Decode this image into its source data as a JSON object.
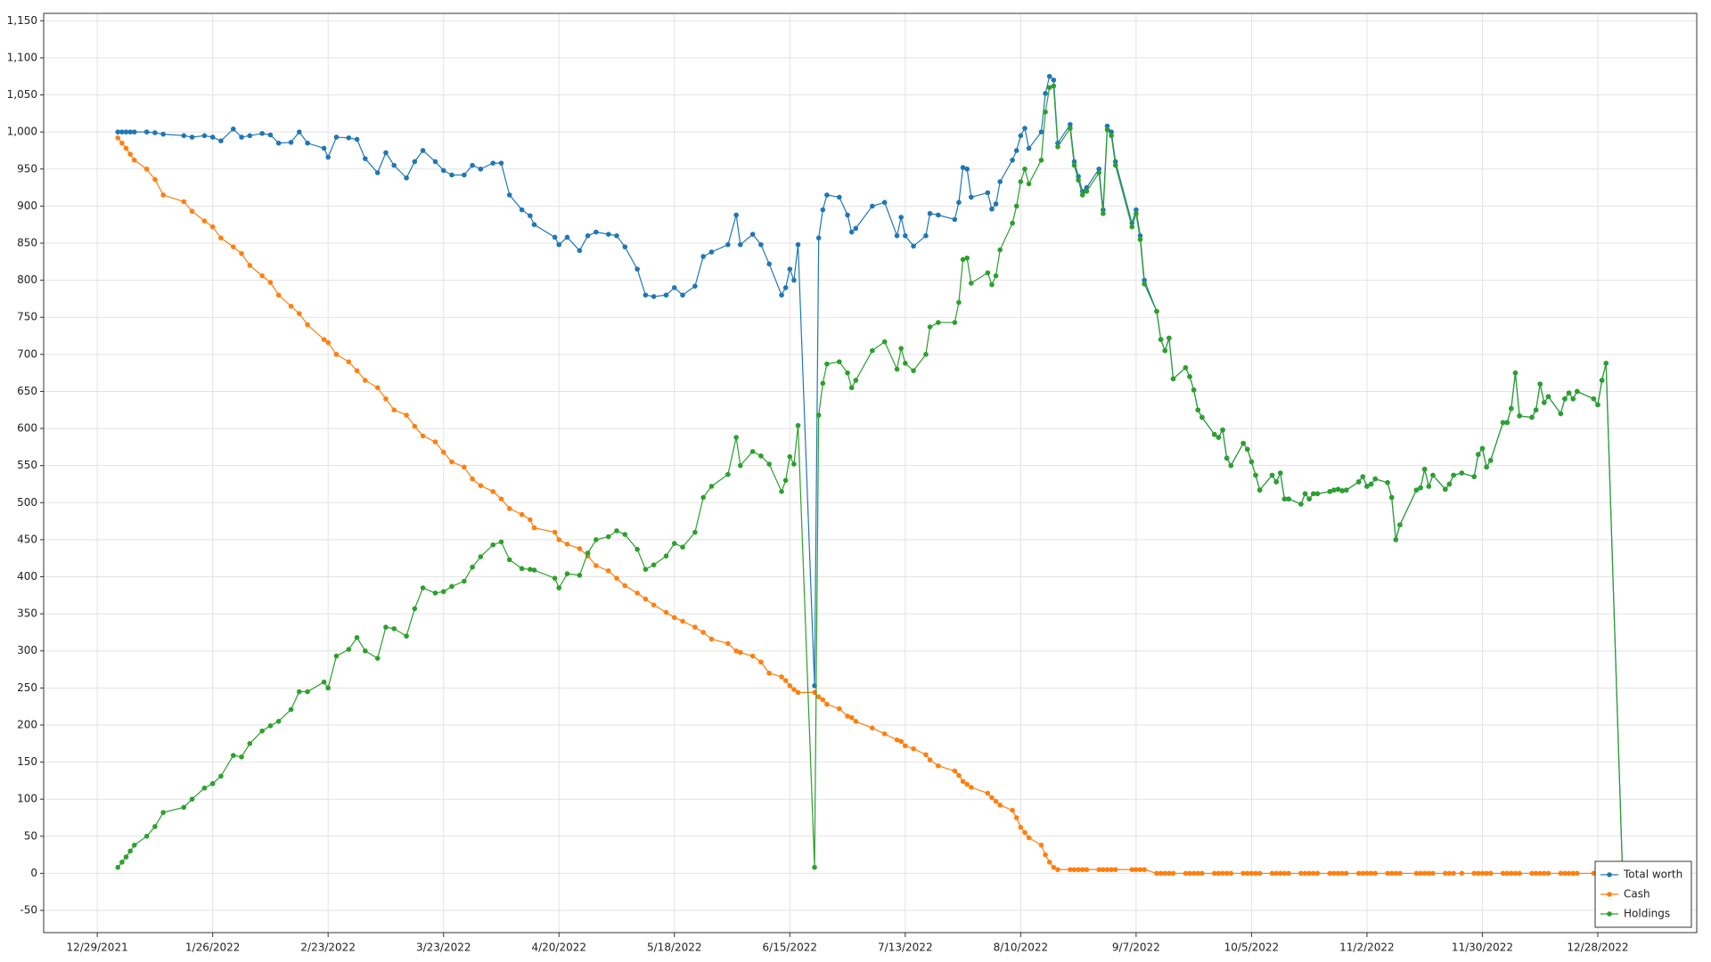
{
  "chart_data": {
    "type": "line",
    "x": [
      "1/3/2022",
      "1/4/2022",
      "1/5/2022",
      "1/6/2022",
      "1/7/2022",
      "1/10/2022",
      "1/12/2022",
      "1/14/2022",
      "1/19/2022",
      "1/21/2022",
      "1/24/2022",
      "1/26/2022",
      "1/28/2022",
      "1/31/2022",
      "2/2/2022",
      "2/4/2022",
      "2/7/2022",
      "2/9/2022",
      "2/11/2022",
      "2/14/2022",
      "2/16/2022",
      "2/18/2022",
      "2/22/2022",
      "2/23/2022",
      "2/25/2022",
      "2/28/2022",
      "3/2/2022",
      "3/4/2022",
      "3/7/2022",
      "3/9/2022",
      "3/11/2022",
      "3/14/2022",
      "3/16/2022",
      "3/18/2022",
      "3/21/2022",
      "3/23/2022",
      "3/25/2022",
      "3/28/2022",
      "3/30/2022",
      "4/1/2022",
      "4/4/2022",
      "4/6/2022",
      "4/8/2022",
      "4/11/2022",
      "4/13/2022",
      "4/14/2022",
      "4/19/2022",
      "4/20/2022",
      "4/22/2022",
      "4/25/2022",
      "4/27/2022",
      "4/29/2022",
      "5/2/2022",
      "5/4/2022",
      "5/6/2022",
      "5/9/2022",
      "5/11/2022",
      "5/13/2022",
      "5/16/2022",
      "5/18/2022",
      "5/20/2022",
      "5/23/2022",
      "5/25/2022",
      "5/27/2022",
      "5/31/2022",
      "6/2/2022",
      "6/3/2022",
      "6/6/2022",
      "6/8/2022",
      "6/10/2022",
      "6/13/2022",
      "6/14/2022",
      "6/15/2022",
      "6/16/2022",
      "6/17/2022",
      "6/21/2022",
      "6/22/2022",
      "6/23/2022",
      "6/24/2022",
      "6/27/2022",
      "6/29/2022",
      "6/30/2022",
      "7/1/2022",
      "7/5/2022",
      "7/8/2022",
      "7/11/2022",
      "7/12/2022",
      "7/13/2022",
      "7/15/2022",
      "7/18/2022",
      "7/19/2022",
      "7/21/2022",
      "7/25/2022",
      "7/26/2022",
      "7/27/2022",
      "7/28/2022",
      "7/29/2022",
      "8/2/2022",
      "8/3/2022",
      "8/4/2022",
      "8/5/2022",
      "8/8/2022",
      "8/9/2022",
      "8/10/2022",
      "8/11/2022",
      "8/12/2022",
      "8/15/2022",
      "8/16/2022",
      "8/17/2022",
      "8/18/2022",
      "8/19/2022",
      "8/22/2022",
      "8/23/2022",
      "8/24/2022",
      "8/25/2022",
      "8/26/2022",
      "8/29/2022",
      "8/30/2022",
      "8/31/2022",
      "9/1/2022",
      "9/2/2022",
      "9/6/2022",
      "9/7/2022",
      "9/8/2022",
      "9/9/2022",
      "9/12/2022",
      "9/13/2022",
      "9/14/2022",
      "9/15/2022",
      "9/16/2022",
      "9/19/2022",
      "9/20/2022",
      "9/21/2022",
      "9/22/2022",
      "9/23/2022",
      "9/26/2022",
      "9/27/2022",
      "9/28/2022",
      "9/29/2022",
      "9/30/2022",
      "10/3/2022",
      "10/4/2022",
      "10/5/2022",
      "10/6/2022",
      "10/7/2022",
      "10/10/2022",
      "10/11/2022",
      "10/12/2022",
      "10/13/2022",
      "10/14/2022",
      "10/17/2022",
      "10/18/2022",
      "10/19/2022",
      "10/20/2022",
      "10/21/2022",
      "10/24/2022",
      "10/25/2022",
      "10/26/2022",
      "10/27/2022",
      "10/28/2022",
      "10/31/2022",
      "11/1/2022",
      "11/2/2022",
      "11/3/2022",
      "11/4/2022",
      "11/7/2022",
      "11/8/2022",
      "11/9/2022",
      "11/10/2022",
      "11/14/2022",
      "11/15/2022",
      "11/16/2022",
      "11/17/2022",
      "11/18/2022",
      "11/21/2022",
      "11/22/2022",
      "11/23/2022",
      "11/25/2022",
      "11/28/2022",
      "11/29/2022",
      "11/30/2022",
      "12/1/2022",
      "12/2/2022",
      "12/5/2022",
      "12/6/2022",
      "12/7/2022",
      "12/8/2022",
      "12/9/2022",
      "12/12/2022",
      "12/13/2022",
      "12/14/2022",
      "12/15/2022",
      "12/16/2022",
      "12/19/2022",
      "12/20/2022",
      "12/21/2022",
      "12/22/2022",
      "12/23/2022",
      "12/27/2022",
      "12/28/2022",
      "12/29/2022",
      "12/30/2022",
      "1/3/2023"
    ],
    "series": [
      {
        "name": "Total worth",
        "color": "#1f77b4",
        "values": [
          1000,
          1000,
          1000,
          1000,
          1000,
          1000,
          999,
          997,
          995,
          993,
          995,
          993,
          988,
          1004,
          993,
          995,
          998,
          996,
          985,
          986,
          1000,
          985,
          978,
          966,
          993,
          992,
          990,
          964,
          945,
          972,
          955,
          938,
          960,
          975,
          960,
          948,
          942,
          942,
          955,
          950,
          958,
          958,
          915,
          895,
          887,
          875,
          858,
          848,
          858,
          840,
          860,
          865,
          862,
          860,
          845,
          815,
          780,
          778,
          780,
          790,
          780,
          792,
          832,
          838,
          848,
          888,
          848,
          862,
          848,
          822,
          780,
          790,
          815,
          800,
          848,
          253,
          857,
          895,
          915,
          912,
          888,
          865,
          870,
          900,
          905,
          860,
          885,
          860,
          846,
          860,
          890,
          888,
          882,
          905,
          952,
          950,
          912,
          918,
          896,
          903,
          933,
          962,
          975,
          995,
          1005,
          978,
          1000,
          1052,
          1075,
          1070,
          985,
          1010,
          960,
          940,
          920,
          925,
          950,
          895,
          1008,
          1000,
          960,
          877,
          895,
          860,
          800,
          758,
          720,
          705,
          722,
          667,
          682,
          670,
          652,
          625,
          615,
          592,
          588,
          598,
          560,
          550,
          580,
          572,
          555,
          537,
          517,
          537,
          528,
          540,
          505,
          505,
          498,
          512,
          505,
          512,
          512,
          515,
          517,
          518,
          516,
          517,
          528,
          535,
          522,
          525,
          532,
          527,
          507,
          450,
          470,
          517,
          520,
          545,
          522,
          537,
          518,
          525,
          537,
          540,
          535,
          565,
          573,
          548,
          557,
          608,
          608,
          627,
          675,
          617,
          615,
          625,
          660,
          635,
          643,
          620,
          640,
          648,
          640,
          650,
          640,
          632,
          665,
          688,
          0
        ]
      },
      {
        "name": "Cash",
        "color": "#ff7f0e",
        "values": [
          992,
          985,
          978,
          970,
          962,
          950,
          936,
          915,
          906,
          893,
          880,
          872,
          857,
          845,
          836,
          820,
          806,
          797,
          780,
          765,
          755,
          740,
          720,
          716,
          700,
          690,
          678,
          665,
          655,
          640,
          625,
          618,
          603,
          590,
          582,
          568,
          555,
          548,
          532,
          523,
          515,
          505,
          492,
          484,
          477,
          466,
          460,
          450,
          444,
          438,
          428,
          415,
          408,
          398,
          388,
          378,
          370,
          362,
          352,
          345,
          340,
          332,
          325,
          316,
          310,
          300,
          298,
          293,
          285,
          270,
          265,
          260,
          253,
          248,
          244,
          244,
          238,
          234,
          228,
          222,
          212,
          210,
          205,
          196,
          188,
          180,
          178,
          172,
          168,
          160,
          153,
          145,
          138,
          132,
          124,
          120,
          116,
          108,
          102,
          97,
          92,
          85,
          75,
          62,
          55,
          48,
          38,
          25,
          15,
          8,
          5,
          5,
          5,
          5,
          5,
          5,
          5,
          5,
          5,
          5,
          5,
          5,
          5,
          5,
          5,
          0,
          0,
          0,
          0,
          0,
          0,
          0,
          0,
          0,
          0,
          0,
          0,
          0,
          0,
          0,
          0,
          0,
          0,
          0,
          0,
          0,
          0,
          0,
          0,
          0,
          0,
          0,
          0,
          0,
          0,
          0,
          0,
          0,
          0,
          0,
          0,
          0,
          0,
          0,
          0,
          0,
          0,
          0,
          0,
          0,
          0,
          0,
          0,
          0,
          0,
          0,
          0,
          0,
          0,
          0,
          0,
          0,
          0,
          0,
          0,
          0,
          0,
          0,
          0,
          0,
          0,
          0,
          0,
          0,
          0,
          0,
          0,
          0,
          0,
          0,
          0,
          0,
          0
        ]
      },
      {
        "name": "Holdings",
        "color": "#2ca02c",
        "values": [
          8,
          15,
          22,
          30,
          38,
          50,
          63,
          82,
          89,
          100,
          115,
          121,
          131,
          159,
          157,
          175,
          192,
          199,
          205,
          221,
          245,
          245,
          258,
          250,
          293,
          302,
          318,
          300,
          290,
          332,
          330,
          320,
          357,
          385,
          378,
          380,
          387,
          394,
          413,
          427,
          443,
          447,
          423,
          411,
          410,
          409,
          398,
          385,
          404,
          402,
          432,
          450,
          454,
          462,
          457,
          437,
          410,
          416,
          428,
          445,
          440,
          460,
          507,
          522,
          538,
          588,
          550,
          569,
          563,
          552,
          515,
          530,
          562,
          552,
          604,
          8,
          618,
          661,
          687,
          690,
          675,
          655,
          665,
          705,
          717,
          680,
          708,
          688,
          678,
          700,
          737,
          743,
          743,
          770,
          828,
          830,
          796,
          810,
          794,
          806,
          841,
          877,
          900,
          933,
          950,
          930,
          962,
          1027,
          1060,
          1062,
          980,
          1005,
          955,
          935,
          915,
          920,
          945,
          890,
          1003,
          995,
          955,
          872,
          890,
          855,
          795,
          758,
          720,
          705,
          722,
          667,
          682,
          670,
          652,
          625,
          615,
          592,
          588,
          598,
          560,
          550,
          580,
          572,
          555,
          537,
          517,
          537,
          528,
          540,
          505,
          505,
          498,
          512,
          505,
          512,
          512,
          515,
          517,
          518,
          516,
          517,
          528,
          535,
          522,
          525,
          532,
          527,
          507,
          450,
          470,
          517,
          520,
          545,
          522,
          537,
          518,
          525,
          537,
          540,
          535,
          565,
          573,
          548,
          557,
          608,
          608,
          627,
          675,
          617,
          615,
          625,
          660,
          635,
          643,
          620,
          640,
          648,
          640,
          650,
          640,
          632,
          665,
          688,
          0
        ]
      }
    ],
    "xlim": [
      "12/16/2021",
      "1/21/2023"
    ],
    "xticks": [
      "12/29/2021",
      "1/26/2022",
      "2/23/2022",
      "3/23/2022",
      "4/20/2022",
      "5/18/2022",
      "6/15/2022",
      "7/13/2022",
      "8/10/2022",
      "9/7/2022",
      "10/5/2022",
      "11/2/2022",
      "11/30/2022",
      "12/28/2022"
    ],
    "ylim": [
      -80,
      1160
    ],
    "yticks": [
      -50,
      0,
      50,
      100,
      150,
      200,
      250,
      300,
      350,
      400,
      450,
      500,
      550,
      600,
      650,
      700,
      750,
      800,
      850,
      900,
      950,
      {
        "value": 1000,
        "label": "1,000"
      },
      {
        "value": 1050,
        "label": "1,050"
      },
      {
        "value": 1100,
        "label": "1,100"
      },
      {
        "value": 1150,
        "label": "1,150"
      }
    ],
    "grid": true,
    "markers": true,
    "legend": "lower right"
  }
}
